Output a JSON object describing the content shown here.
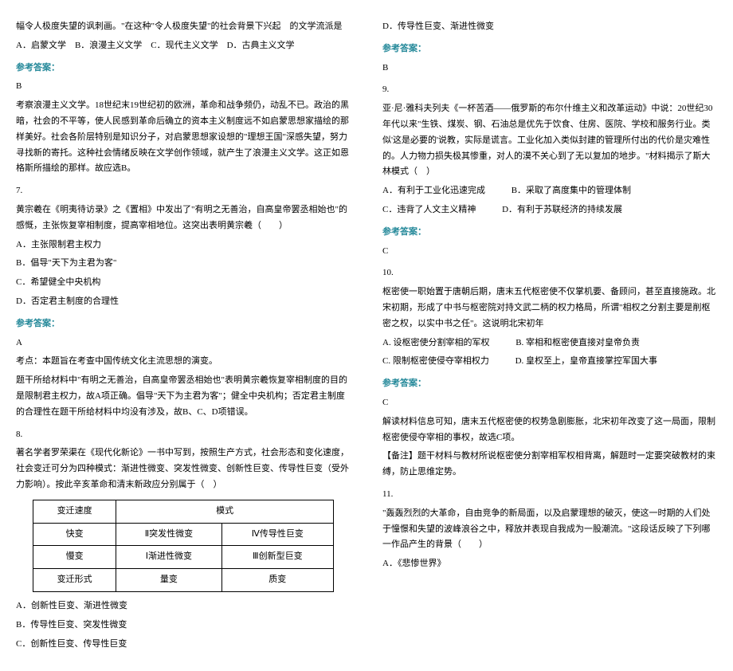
{
  "left": {
    "intro1": "幅令人极度失望的讽刺画。\"在这种\"令人极度失望\"的社会背景下兴起　的文学流派是",
    "q6_options": "A．启蒙文学　B．浪漫主义文学　C．现代主义文学　D．古典主义文学",
    "ans_label": "参考答案：",
    "q6_ans": "B",
    "q6_exp": "考察浪漫主义文学。18世纪末19世纪初的欧洲，革命和战争频仍，动乱不已。政治的黑暗，社会的不平等，使人民感到革命后确立的资本主义制度远不如启蒙思想家描绘的那样美好。社会各阶层特别是知识分子，对启蒙思想家设想的\"理想王国\"深感失望，努力寻找新的寄托。这种社会情绪反映在文学创作领域，就产生了浪漫主义文学。这正如恩格斯所描绘的那样。故应选B。",
    "q7_num": "7.",
    "q7_stem": "黄宗羲在《明夷待访录》之《置相》中发出了\"有明之无善治，自高皇帝罢丞相始也\"的感慨，主张恢复宰相制度，提高宰相地位。这突出表明黄宗羲（　　）",
    "q7_a": "A．主张限制君主权力",
    "q7_b": "B．倡导\"天下为主君为客\"",
    "q7_c": "C．希望健全中央机构",
    "q7_d": "D．否定君主制度的合理性",
    "q7_ans": "A",
    "q7_exp1": "考点：本题旨在考查中国传统文化主流思想的演变。",
    "q7_exp2": "题干所给材料中\"有明之无善治，自高皇帝罢丞相始也\"表明黄宗羲恢复宰相制度的目的是限制君主权力，故A项正确。倡导\"天下为主君为客\"；健全中央机构；否定君主制度的合理性在题干所给材料中均没有涉及，故B、C、D项错误。",
    "q8_num": "8.",
    "q8_stem": "著名学者罗荣渠在《现代化新论》一书中写到，按照生产方式，社会形态和变化速度，社会变迁可分为四种模式：渐进性微变、突发性微变、创新性巨变、传导性巨变（受外力影响）。按此辛亥革命和清末新政应分别属于（　）",
    "table": {
      "r1": [
        "变迁速度",
        "模式",
        ""
      ],
      "r2": [
        "快变",
        "Ⅱ突发性微变",
        "Ⅳ传导性巨变"
      ],
      "r3": [
        "慢变",
        "Ⅰ渐进性微变",
        "Ⅲ创新型巨变"
      ],
      "r4": [
        "变迁形式",
        "量变",
        "质变"
      ]
    },
    "q8_a": "A．创新性巨变、渐进性微变",
    "q8_b": "B．传导性巨变、突发性微变",
    "q8_c": "C．创新性巨变、传导性巨变"
  },
  "right": {
    "q8_d": "D．传导性巨变、渐进性微变",
    "ans_label": "参考答案：",
    "q8_ans": "B",
    "q9_num": "9.",
    "q9_stem": "亚·尼·雅科夫列夫《一杯苦酒——俄罗斯的布尔什维主义和改革运动》中说：20世纪30年代以来\"生铁、煤炭、钢、石油总是优先于饮食、住房、医院、学校和服务行业。类似'这是必要的'说教，实际是谎言。工业化加入类似封建的管理所付出的代价是灾难性的。人力物力损失极其惨重，对人的漠不关心到了无以复加的地步。\"材料揭示了斯大林模式（　）",
    "q9_a": "A．有利于工业化迅速完成",
    "q9_b": "B．采取了高度集中的管理体制",
    "q9_c": "C．违背了人文主义精神",
    "q9_d": "D．有利于苏联经济的持续发展",
    "q9_ans": "C",
    "q10_num": "10.",
    "q10_stem": "枢密使一职始置于唐朝后期，唐末五代枢密使不仅掌机要、备顾问，甚至直接施政。北宋初期，形成了中书与枢密院对持文武二柄的权力格局，所谓\"相权之分割主要是削枢密之权，以实中书之任\"。这说明北宋初年",
    "q10_a": "A. 设枢密使分割宰相的军权",
    "q10_b": "B. 宰相和枢密使直接对皇帝负责",
    "q10_c": "C. 限制枢密使侵夺宰相权力",
    "q10_d": "D. 皇权至上，皇帝直接掌控军国大事",
    "q10_ans": "C",
    "q10_exp1": "解读材料信息可知，唐末五代枢密使的权势急剧膨胀，北宋初年改变了这一局面，限制枢密使侵夺宰相的事权，故选C项。",
    "q10_exp2": "【备注】题干材料与教材所说枢密使分割宰相军权相背离，解题时一定要突破教材的束缚，防止思维定势。",
    "q11_num": "11.",
    "q11_stem": "\"轰轰烈烈的大革命，自由竞争的新局面，以及启蒙理想的破灭，使这一时期的人们处于憧憬和失望的波峰浪谷之中，释放并表现自我成为一股潮流。\"这段话反映了下列哪一作品产生的背景（　　）",
    "q11_a": "A．《悲惨世界》"
  }
}
